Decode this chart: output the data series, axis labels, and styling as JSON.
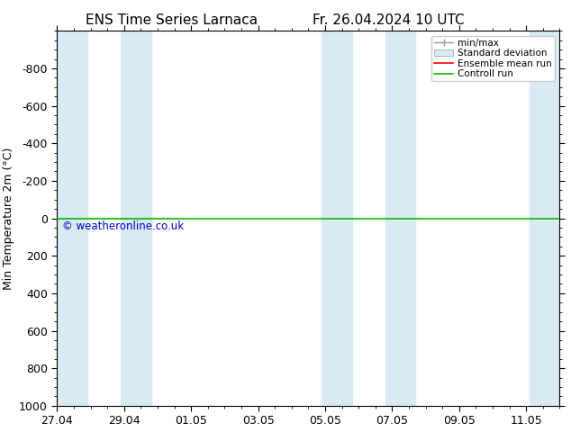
{
  "title_left": "ENS Time Series Larnaca",
  "title_right": "Fr. 26.04.2024 10 UTC",
  "ylabel": "Min Temperature 2m (°C)",
  "ylim": [
    -1000,
    1000
  ],
  "yticks": [
    -800,
    -600,
    -400,
    -200,
    0,
    200,
    400,
    600,
    800,
    1000
  ],
  "xtick_labels": [
    "27.04",
    "29.04",
    "01.05",
    "03.05",
    "05.05",
    "07.05",
    "09.05",
    "11.05"
  ],
  "xtick_positions": [
    0,
    2,
    4,
    6,
    8,
    10,
    12,
    14
  ],
  "xlim": [
    0,
    15
  ],
  "shade_bands": [
    [
      0.0,
      0.9
    ],
    [
      1.9,
      2.8
    ],
    [
      7.9,
      8.8
    ],
    [
      9.8,
      10.7
    ],
    [
      14.1,
      15.0
    ]
  ],
  "shade_color": "#daeaf5",
  "control_run_y": 0.0,
  "control_run_color": "#00bb00",
  "ensemble_mean_color": "#ff0000",
  "watermark": "© weatheronline.co.uk",
  "watermark_color": "#0000cc",
  "bg_color": "#ffffff",
  "legend_labels": [
    "min/max",
    "Standard deviation",
    "Ensemble mean run",
    "Controll run"
  ],
  "legend_colors": [
    "#aaaaaa",
    "#aaaaaa",
    "#ff0000",
    "#00bb00"
  ],
  "title_fontsize": 11,
  "axis_fontsize": 9,
  "tick_fontsize": 9
}
